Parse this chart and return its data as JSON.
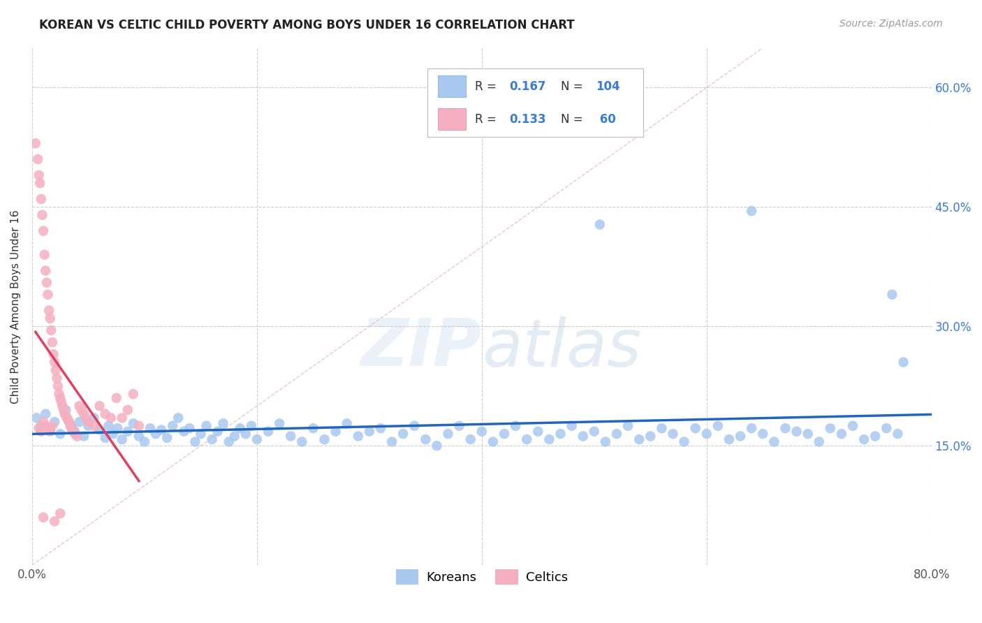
{
  "title": "KOREAN VS CELTIC CHILD POVERTY AMONG BOYS UNDER 16 CORRELATION CHART",
  "source": "Source: ZipAtlas.com",
  "ylabel": "Child Poverty Among Boys Under 16",
  "xlim": [
    0.0,
    0.8
  ],
  "ylim": [
    0.0,
    0.65
  ],
  "xtick_vals": [
    0.0,
    0.2,
    0.4,
    0.6,
    0.8
  ],
  "xtick_labels": [
    "0.0%",
    "",
    "",
    "",
    "80.0%"
  ],
  "ytick_vals": [
    0.15,
    0.3,
    0.45,
    0.6
  ],
  "ytick_labels": [
    "15.0%",
    "30.0%",
    "45.0%",
    "60.0%"
  ],
  "korean_R": 0.167,
  "korean_N": 104,
  "celtic_R": 0.133,
  "celtic_N": 60,
  "korean_color": "#a8c8f0",
  "celtic_color": "#f5afc0",
  "korean_line_color": "#2266bb",
  "celtic_line_color": "#e04060",
  "diagonal_color": "#e8c0c8",
  "watermark": "ZIPatlas",
  "legend_korean_label": "Koreans",
  "legend_celtic_label": "Celtics",
  "korean_x": [
    0.004,
    0.008,
    0.012,
    0.016,
    0.02,
    0.025,
    0.03,
    0.035,
    0.038,
    0.042,
    0.046,
    0.05,
    0.055,
    0.06,
    0.065,
    0.068,
    0.072,
    0.076,
    0.08,
    0.085,
    0.09,
    0.095,
    0.1,
    0.105,
    0.11,
    0.115,
    0.12,
    0.125,
    0.13,
    0.135,
    0.14,
    0.145,
    0.15,
    0.155,
    0.16,
    0.165,
    0.17,
    0.175,
    0.18,
    0.185,
    0.19,
    0.195,
    0.2,
    0.21,
    0.22,
    0.23,
    0.24,
    0.25,
    0.26,
    0.27,
    0.28,
    0.29,
    0.3,
    0.31,
    0.32,
    0.33,
    0.34,
    0.35,
    0.36,
    0.37,
    0.38,
    0.39,
    0.4,
    0.41,
    0.42,
    0.43,
    0.44,
    0.45,
    0.46,
    0.47,
    0.48,
    0.49,
    0.5,
    0.51,
    0.52,
    0.53,
    0.54,
    0.55,
    0.56,
    0.57,
    0.58,
    0.59,
    0.6,
    0.61,
    0.62,
    0.63,
    0.64,
    0.65,
    0.66,
    0.67,
    0.68,
    0.69,
    0.7,
    0.71,
    0.72,
    0.73,
    0.74,
    0.75,
    0.76,
    0.77,
    0.505,
    0.64,
    0.765,
    0.775
  ],
  "korean_y": [
    0.185,
    0.175,
    0.19,
    0.17,
    0.18,
    0.165,
    0.195,
    0.175,
    0.168,
    0.18,
    0.162,
    0.175,
    0.185,
    0.17,
    0.16,
    0.175,
    0.165,
    0.172,
    0.158,
    0.168,
    0.178,
    0.162,
    0.155,
    0.172,
    0.165,
    0.17,
    0.16,
    0.175,
    0.185,
    0.168,
    0.172,
    0.155,
    0.165,
    0.175,
    0.158,
    0.168,
    0.178,
    0.155,
    0.162,
    0.172,
    0.165,
    0.175,
    0.158,
    0.168,
    0.178,
    0.162,
    0.155,
    0.172,
    0.158,
    0.168,
    0.178,
    0.162,
    0.168,
    0.172,
    0.155,
    0.165,
    0.175,
    0.158,
    0.15,
    0.165,
    0.175,
    0.158,
    0.168,
    0.155,
    0.165,
    0.175,
    0.158,
    0.168,
    0.158,
    0.165,
    0.175,
    0.162,
    0.168,
    0.155,
    0.165,
    0.175,
    0.158,
    0.162,
    0.172,
    0.165,
    0.155,
    0.172,
    0.165,
    0.175,
    0.158,
    0.162,
    0.172,
    0.165,
    0.155,
    0.172,
    0.168,
    0.165,
    0.155,
    0.172,
    0.165,
    0.175,
    0.158,
    0.162,
    0.172,
    0.165,
    0.428,
    0.445,
    0.34,
    0.255
  ],
  "celtic_x": [
    0.003,
    0.005,
    0.006,
    0.007,
    0.008,
    0.009,
    0.01,
    0.011,
    0.012,
    0.013,
    0.014,
    0.015,
    0.016,
    0.017,
    0.018,
    0.019,
    0.02,
    0.021,
    0.022,
    0.023,
    0.024,
    0.025,
    0.026,
    0.027,
    0.028,
    0.029,
    0.03,
    0.031,
    0.032,
    0.033,
    0.034,
    0.035,
    0.036,
    0.037,
    0.038,
    0.04,
    0.042,
    0.044,
    0.046,
    0.048,
    0.05,
    0.055,
    0.06,
    0.065,
    0.07,
    0.075,
    0.08,
    0.085,
    0.09,
    0.095,
    0.006,
    0.008,
    0.01,
    0.012,
    0.014,
    0.016,
    0.018,
    0.01,
    0.02,
    0.025
  ],
  "celtic_y": [
    0.53,
    0.51,
    0.49,
    0.48,
    0.46,
    0.44,
    0.42,
    0.39,
    0.37,
    0.355,
    0.34,
    0.32,
    0.31,
    0.295,
    0.28,
    0.265,
    0.255,
    0.245,
    0.235,
    0.225,
    0.215,
    0.21,
    0.205,
    0.2,
    0.195,
    0.19,
    0.188,
    0.185,
    0.182,
    0.18,
    0.175,
    0.172,
    0.17,
    0.168,
    0.165,
    0.162,
    0.2,
    0.195,
    0.19,
    0.185,
    0.18,
    0.175,
    0.2,
    0.19,
    0.185,
    0.21,
    0.185,
    0.195,
    0.215,
    0.175,
    0.172,
    0.168,
    0.18,
    0.175,
    0.172,
    0.168,
    0.175,
    0.06,
    0.055,
    0.065
  ]
}
